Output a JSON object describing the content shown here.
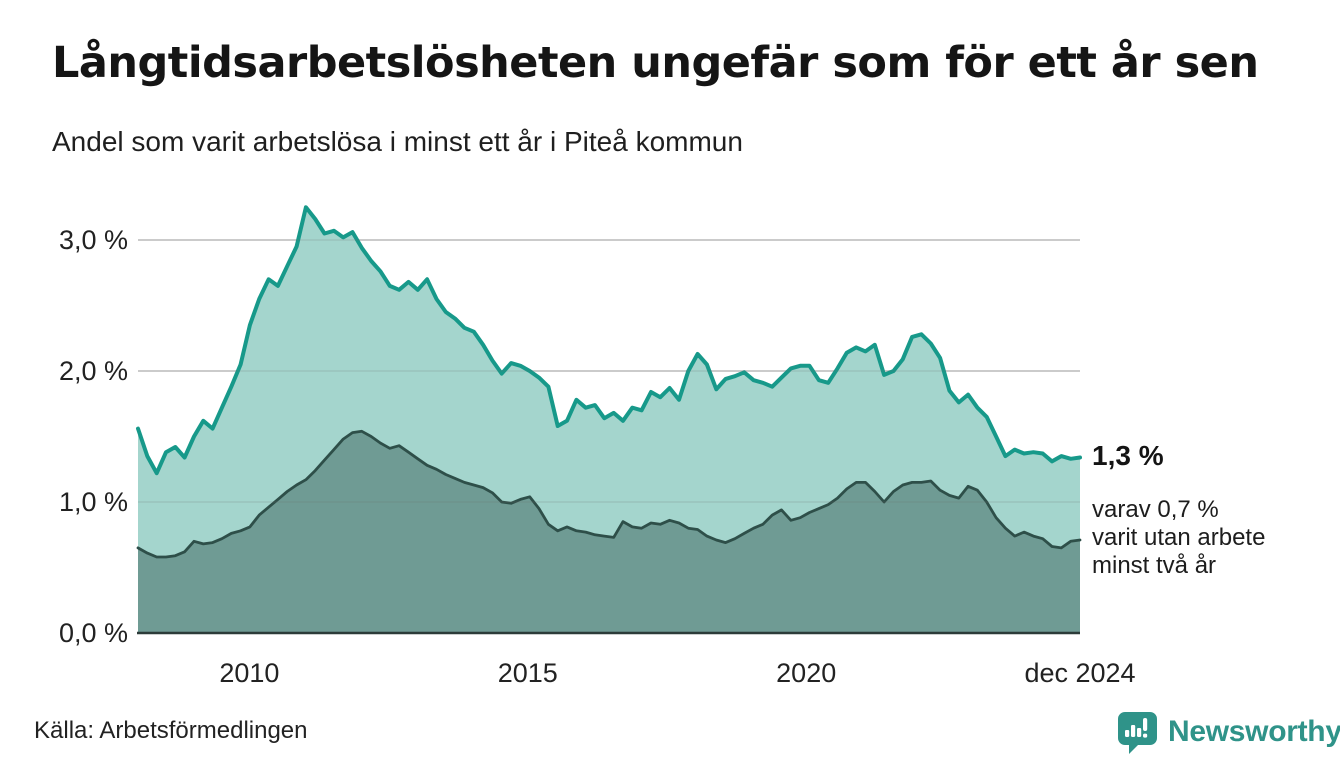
{
  "header": {
    "title": "Långtidsarbetslösheten ungefär som för ett år sen",
    "subtitle": "Andel som varit arbetslösa i minst ett år i Piteå kommun"
  },
  "chart_data": {
    "type": "area",
    "title": "Långtidsarbetslösheten ungefär som för ett år sen",
    "subtitle": "Andel som varit arbetslösa i minst ett år i Piteå kommun",
    "x_range": {
      "start": "jan 2008",
      "end": "dec 2024",
      "points_per_year": 6
    },
    "ylim": [
      0,
      3.4
    ],
    "grid": true,
    "legend_position": "none",
    "xlabel": "",
    "ylabel": "",
    "y_ticks": [
      {
        "label": "0,0 %",
        "value": 0
      },
      {
        "label": "1,0 %",
        "value": 1
      },
      {
        "label": "2,0 %",
        "value": 2
      },
      {
        "label": "3,0 %",
        "value": 3
      }
    ],
    "x_ticks": [
      {
        "label": "2010",
        "year": 2010
      },
      {
        "label": "2015",
        "year": 2015
      },
      {
        "label": "2020",
        "year": 2020
      },
      {
        "label": "dec 2024",
        "year": 2024.917
      }
    ],
    "series": [
      {
        "name": "Arbetslösa minst ett år",
        "line_color": "#17998a",
        "fill_color": "#a4d5cd",
        "end_value_pct": 1.3,
        "values": [
          1.56,
          1.35,
          1.22,
          1.38,
          1.42,
          1.34,
          1.5,
          1.62,
          1.56,
          1.72,
          1.88,
          2.05,
          2.35,
          2.55,
          2.7,
          2.65,
          2.8,
          2.95,
          3.25,
          3.16,
          3.05,
          3.07,
          3.02,
          3.06,
          2.94,
          2.84,
          2.76,
          2.65,
          2.62,
          2.68,
          2.62,
          2.7,
          2.55,
          2.45,
          2.4,
          2.33,
          2.3,
          2.2,
          2.08,
          1.98,
          2.06,
          2.04,
          2.0,
          1.95,
          1.88,
          1.58,
          1.62,
          1.78,
          1.72,
          1.74,
          1.64,
          1.68,
          1.62,
          1.72,
          1.7,
          1.84,
          1.8,
          1.87,
          1.78,
          2.0,
          2.13,
          2.05,
          1.86,
          1.94,
          1.96,
          1.99,
          1.93,
          1.91,
          1.88,
          1.95,
          2.02,
          2.04,
          2.04,
          1.93,
          1.91,
          2.02,
          2.14,
          2.18,
          2.15,
          2.2,
          1.97,
          2.0,
          2.09,
          2.26,
          2.28,
          2.21,
          2.1,
          1.85,
          1.76,
          1.82,
          1.72,
          1.65,
          1.5,
          1.35,
          1.4,
          1.37,
          1.38,
          1.37,
          1.31,
          1.35,
          1.33,
          1.34
        ]
      },
      {
        "name": "Utan arbete minst två år",
        "line_color": "#2e4f49",
        "fill_color": "#6f9b94",
        "end_value_pct": 0.7,
        "values": [
          0.65,
          0.61,
          0.58,
          0.58,
          0.59,
          0.62,
          0.7,
          0.68,
          0.69,
          0.72,
          0.76,
          0.78,
          0.81,
          0.9,
          0.96,
          1.02,
          1.08,
          1.13,
          1.17,
          1.24,
          1.32,
          1.4,
          1.48,
          1.53,
          1.54,
          1.5,
          1.45,
          1.41,
          1.43,
          1.38,
          1.33,
          1.28,
          1.25,
          1.21,
          1.18,
          1.15,
          1.13,
          1.11,
          1.07,
          1.0,
          0.99,
          1.02,
          1.04,
          0.95,
          0.83,
          0.78,
          0.81,
          0.78,
          0.77,
          0.75,
          0.74,
          0.73,
          0.85,
          0.81,
          0.8,
          0.84,
          0.83,
          0.86,
          0.84,
          0.8,
          0.79,
          0.74,
          0.71,
          0.69,
          0.72,
          0.76,
          0.8,
          0.83,
          0.9,
          0.94,
          0.86,
          0.88,
          0.92,
          0.95,
          0.98,
          1.03,
          1.1,
          1.15,
          1.15,
          1.08,
          1.0,
          1.08,
          1.13,
          1.15,
          1.15,
          1.16,
          1.09,
          1.05,
          1.03,
          1.12,
          1.09,
          1.0,
          0.88,
          0.8,
          0.74,
          0.77,
          0.74,
          0.72,
          0.66,
          0.65,
          0.7,
          0.71
        ]
      }
    ],
    "annotations": {
      "end_value_label": "1,3 %",
      "detail_lines": [
        "varav 0,7 %",
        "varit utan arbete",
        "minst två år"
      ]
    }
  },
  "footer": {
    "source": "Källa: Arbetsförmedlingen",
    "logo_text": "Newsworthy"
  },
  "colors": {
    "background": "#ffffff",
    "grid": "#d9d9d9",
    "grid_overlay": "rgba(110,110,110,0.13)",
    "baseline": "#2c3b39",
    "text": "#1a1a1a",
    "accent_teal": "#17998a",
    "logo_teal": "#2f9389"
  }
}
